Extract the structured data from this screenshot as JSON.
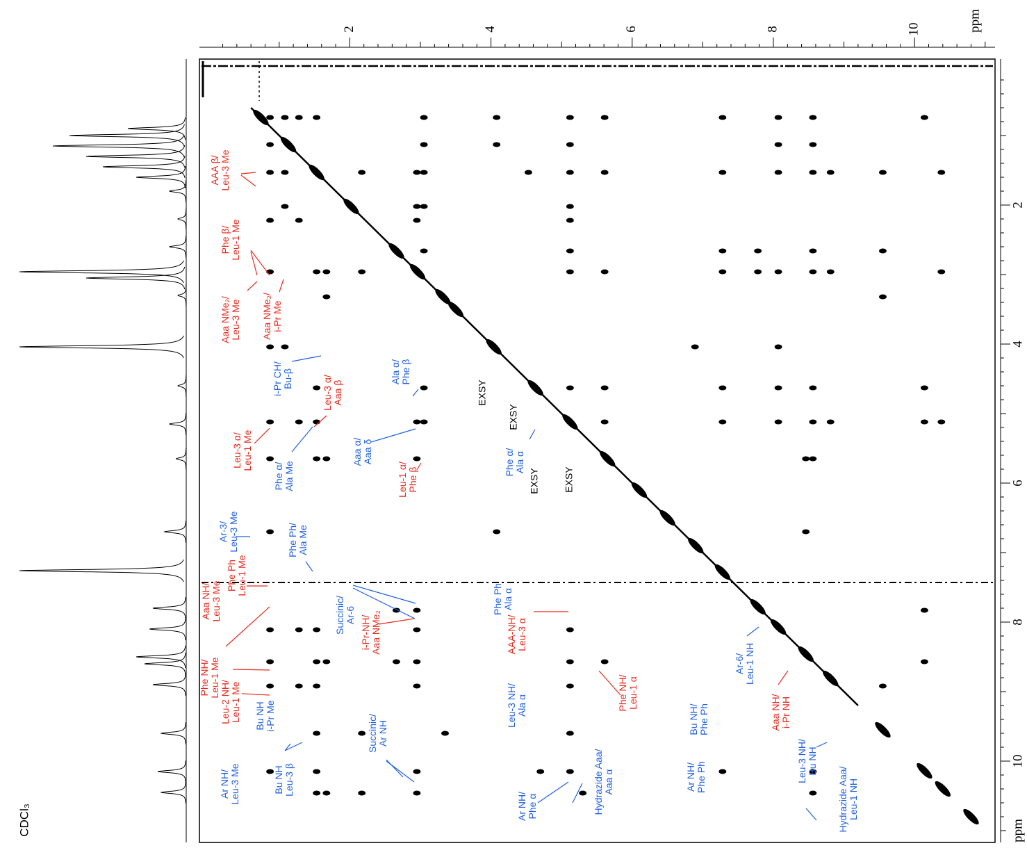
{
  "chart_data": {
    "type": "scatter",
    "xlabel": "ppm",
    "ylabel": "ppm",
    "xlim": [
      -0.13,
      11.14
    ],
    "ylim": [
      -0.1,
      11.17
    ],
    "xticks": [
      2,
      4,
      6,
      8,
      10
    ],
    "yticks": [
      2,
      4,
      6,
      8,
      10
    ],
    "solvent": "CDCl₃",
    "color": "#000000",
    "x": [
      0.87,
      1.08,
      1.28,
      1.53,
      3.05,
      4.08,
      5.12,
      5.61,
      7.28,
      8.07,
      8.56,
      10.14,
      0.87,
      3.05,
      4.08,
      5.12,
      8.07,
      8.56,
      0.87,
      1.08,
      2.17,
      2.95,
      3.05,
      4.53,
      5.12,
      5.61,
      7.28,
      8.07,
      8.56,
      8.81,
      9.55,
      10.38,
      1.08,
      2.95,
      3.05,
      5.12,
      0.87,
      1.28,
      2.95,
      5.12,
      3.05,
      5.12,
      7.28,
      7.78,
      8.56,
      9.55,
      0.87,
      1.53,
      1.67,
      2.17,
      5.12,
      5.61,
      7.28,
      7.78,
      8.07,
      8.56,
      8.81,
      10.38,
      1.67,
      9.55,
      0.87,
      1.08,
      6.89,
      8.07,
      1.53,
      3.05,
      5.12,
      5.61,
      7.28,
      8.07,
      8.56,
      10.14,
      0.87,
      1.28,
      1.53,
      2.95,
      3.05,
      5.61,
      7.28,
      8.07,
      8.56,
      8.81,
      10.14,
      10.38,
      0.87,
      1.53,
      1.67,
      2.95,
      8.46,
      8.56,
      0.87,
      4.08,
      8.46,
      2.66,
      2.95,
      10.14,
      0.87,
      1.28,
      1.53,
      2.95,
      5.12,
      0.87,
      1.53,
      1.67,
      2.66,
      2.95,
      5.12,
      5.61,
      10.14,
      0.87,
      1.28,
      1.53,
      2.95,
      5.12,
      9.55,
      1.53,
      2.17,
      3.35,
      5.12,
      0.87,
      1.53,
      2.95,
      4.7,
      5.12,
      7.28,
      8.56,
      1.53,
      1.67,
      2.17,
      2.95,
      5.3,
      8.56
    ],
    "values": [
      0.74,
      0.74,
      0.74,
      0.74,
      0.74,
      0.74,
      0.74,
      0.74,
      0.74,
      0.74,
      0.74,
      0.74,
      1.13,
      1.13,
      1.13,
      1.13,
      1.13,
      1.13,
      1.53,
      1.53,
      1.53,
      1.53,
      1.53,
      1.53,
      1.53,
      1.53,
      1.53,
      1.53,
      1.53,
      1.53,
      1.53,
      1.53,
      2.02,
      2.02,
      2.02,
      2.02,
      2.22,
      2.22,
      2.22,
      2.22,
      2.66,
      2.66,
      2.66,
      2.66,
      2.66,
      2.66,
      2.96,
      2.96,
      2.96,
      2.96,
      2.96,
      2.96,
      2.96,
      2.96,
      2.96,
      2.96,
      2.96,
      2.96,
      3.32,
      3.32,
      4.04,
      4.04,
      4.04,
      4.04,
      4.63,
      4.63,
      4.63,
      4.63,
      4.63,
      4.63,
      4.63,
      4.63,
      5.12,
      5.12,
      5.12,
      5.12,
      5.12,
      5.12,
      5.12,
      5.12,
      5.12,
      5.12,
      5.12,
      5.12,
      5.65,
      5.65,
      5.65,
      5.65,
      5.65,
      5.65,
      6.7,
      6.7,
      6.7,
      7.83,
      7.83,
      7.83,
      8.11,
      8.11,
      8.11,
      8.11,
      8.11,
      8.57,
      8.57,
      8.57,
      8.57,
      8.57,
      8.57,
      8.57,
      8.57,
      8.92,
      8.92,
      8.92,
      8.92,
      8.92,
      8.92,
      9.6,
      9.6,
      9.6,
      9.6,
      10.15,
      10.15,
      10.15,
      10.15,
      10.15,
      10.15,
      10.15,
      10.46,
      10.46,
      10.46,
      10.46,
      10.46,
      10.46
    ],
    "diagonal_peaks": [
      0.74,
      1.13,
      1.53,
      2.02,
      2.66,
      2.96,
      3.32,
      3.5,
      4.04,
      4.63,
      5.12,
      5.65,
      6.1,
      6.5,
      6.9,
      7.28,
      7.78,
      8.07,
      8.46,
      8.81,
      9.55,
      10.14,
      10.4,
      10.8
    ],
    "trace": {
      "ppm": [
        0.9,
        1.0,
        1.15,
        1.3,
        1.45,
        1.6,
        1.8,
        2.2,
        2.6,
        2.96,
        3.05,
        3.3,
        4.04,
        4.6,
        5.15,
        5.65,
        6.7,
        7.26,
        7.8,
        8.1,
        8.5,
        8.6,
        8.9,
        9.6,
        10.15,
        10.45
      ],
      "intensity": [
        0.35,
        0.7,
        0.8,
        0.6,
        0.5,
        0.3,
        0.1,
        0.05,
        0.1,
        1.0,
        0.6,
        0.05,
        1.0,
        0.05,
        0.1,
        0.06,
        0.13,
        1.0,
        0.2,
        0.22,
        0.3,
        0.25,
        0.2,
        0.15,
        0.17,
        0.15
      ]
    },
    "annotations": [
      {
        "lines": [
          "AAA β/",
          "Leu-3 Me"
        ],
        "color": "#e8291c"
      },
      {
        "lines": [
          "Phe β/",
          "Leu-1 Me"
        ],
        "color": "#e8291c"
      },
      {
        "lines": [
          "Aaa NMe₂/",
          "Leu-3 Me"
        ],
        "color": "#e8291c"
      },
      {
        "lines": [
          "Aaa NMe₂/",
          "i-Pr Me"
        ],
        "color": "#e8291c"
      },
      {
        "lines": [
          "i-Pr CH/",
          "Bu-β"
        ],
        "color": "#1f5fe0"
      },
      {
        "lines": [
          "Leu-3 α/",
          "Aaa β"
        ],
        "color": "#e8291c"
      },
      {
        "lines": [
          "Leu-3 α/",
          "Leu-1 Me"
        ],
        "color": "#e8291c"
      },
      {
        "lines": [
          "Phe α/",
          "Ala Me"
        ],
        "color": "#1f5fe0"
      },
      {
        "lines": [
          "Ala α/",
          "Phe β"
        ],
        "color": "#1f5fe0"
      },
      {
        "lines": [
          "Aaa α/",
          "Aaa δ"
        ],
        "color": "#1f5fe0"
      },
      {
        "lines": [
          "Leu-1 α/",
          "Phe β"
        ],
        "color": "#e8291c"
      },
      {
        "lines": [
          "EXSY"
        ],
        "color": "#000000"
      },
      {
        "lines": [
          "EXSY"
        ],
        "color": "#000000"
      },
      {
        "lines": [
          "Phe α/",
          "Ala α"
        ],
        "color": "#1f5fe0"
      },
      {
        "lines": [
          "EXSY"
        ],
        "color": "#000000"
      },
      {
        "lines": [
          "EXSY"
        ],
        "color": "#000000"
      },
      {
        "lines": [
          "Ar-3/",
          "Leu-3 Me"
        ],
        "color": "#1f5fe0"
      },
      {
        "lines": [
          "Phe Ph/",
          "Ala Me"
        ],
        "color": "#1f5fe0"
      },
      {
        "lines": [
          "Aaa NH/",
          "Leu-3 Me"
        ],
        "color": "#e8291c"
      },
      {
        "lines": [
          "Phe NH/",
          "Leu-1 Me"
        ],
        "color": "#e8291c"
      },
      {
        "lines": [
          "Phe Ph",
          "Leu-1 Me"
        ],
        "color": "#e8291c"
      },
      {
        "lines": [
          "Leu-2 NH/",
          "Leu-1 Me"
        ],
        "color": "#e8291c"
      },
      {
        "lines": [
          "Succinic/",
          "Ar-6"
        ],
        "color": "#1f5fe0"
      },
      {
        "lines": [
          "i-Pr-NH/",
          "Aaa NMe₂"
        ],
        "color": "#e8291c"
      },
      {
        "lines": [
          "Phe Ph",
          "Ala α"
        ],
        "color": "#1f5fe0"
      },
      {
        "lines": [
          "Leu-3 NH/",
          "Ala α"
        ],
        "color": "#1f5fe0"
      },
      {
        "lines": [
          "AAA-NH/",
          "Leu-3 α"
        ],
        "color": "#e8291c"
      },
      {
        "lines": [
          "Phe NH/",
          "Leu-1 α"
        ],
        "color": "#e8291c"
      },
      {
        "lines": [
          "Bu NH",
          "i-Pr Me"
        ],
        "color": "#1f5fe0"
      },
      {
        "lines": [
          "Ar NH/",
          "Leu-3 Me"
        ],
        "color": "#1f5fe0"
      },
      {
        "lines": [
          "Bu NH",
          "Leu-3 β"
        ],
        "color": "#1f5fe0"
      },
      {
        "lines": [
          "Succinic/",
          "Ar NH"
        ],
        "color": "#1f5fe0"
      },
      {
        "lines": [
          "Ar NH/",
          "Phe α"
        ],
        "color": "#1f5fe0"
      },
      {
        "lines": [
          "Hydrazide Aaa/",
          "Aaa α"
        ],
        "color": "#1f5fe0"
      },
      {
        "lines": [
          "Ar NH/",
          "Phe Ph"
        ],
        "color": "#1f5fe0"
      },
      {
        "lines": [
          "Bu NH/",
          "Phe Ph"
        ],
        "color": "#1f5fe0"
      },
      {
        "lines": [
          "Ar-6/",
          "Leu-1 NH"
        ],
        "color": "#1f5fe0"
      },
      {
        "lines": [
          "Aaa NH/",
          "i-Pr NH"
        ],
        "color": "#e8291c"
      },
      {
        "lines": [
          "Leu-3 NH/",
          "Bu NH"
        ],
        "color": "#1f5fe0"
      },
      {
        "lines": [
          "Hydrazide Aaa/",
          "Leu-1 NH"
        ],
        "color": "#1f5fe0"
      }
    ]
  }
}
